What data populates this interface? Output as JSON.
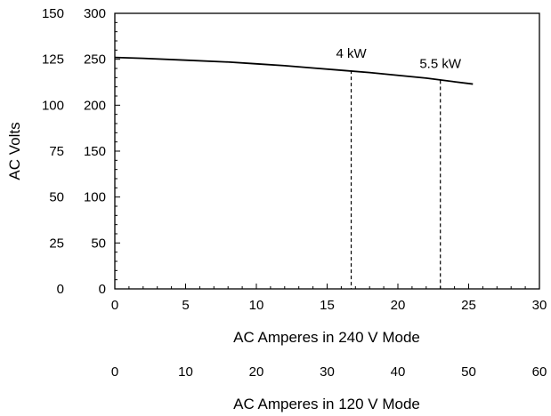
{
  "chart_data": {
    "type": "line",
    "title": "",
    "xlabel": "AC Amperes in 240 V Mode",
    "x2label": "AC Amperes in 120 V Mode",
    "ylabel": "AC Volts",
    "xlim": [
      0,
      30
    ],
    "ylim": [
      0,
      300
    ],
    "x2lim": [
      0,
      60
    ],
    "y2lim": [
      0,
      150
    ],
    "x_ticks": [
      "0",
      "5",
      "10",
      "15",
      "20",
      "25",
      "30"
    ],
    "x2_ticks": [
      "0",
      "10",
      "20",
      "30",
      "40",
      "50",
      "60"
    ],
    "y_ticks": [
      "0",
      "50",
      "100",
      "150",
      "200",
      "250",
      "300"
    ],
    "y2_ticks": [
      "0",
      "25",
      "50",
      "75",
      "100",
      "125",
      "150"
    ],
    "grid": false,
    "series": [
      {
        "x": [
          0,
          2,
          5,
          8,
          10,
          12,
          14,
          16,
          18,
          20,
          22,
          24,
          25.3
        ],
        "values": [
          252,
          251,
          249,
          247,
          245,
          243,
          240.5,
          238,
          235.5,
          232.5,
          229.5,
          225.5,
          223
        ]
      }
    ],
    "markers": [
      {
        "label": "4 kW",
        "x": 16.7,
        "y": 238
      },
      {
        "label": "5.5 kW",
        "x": 23.0,
        "y": 227
      }
    ]
  }
}
